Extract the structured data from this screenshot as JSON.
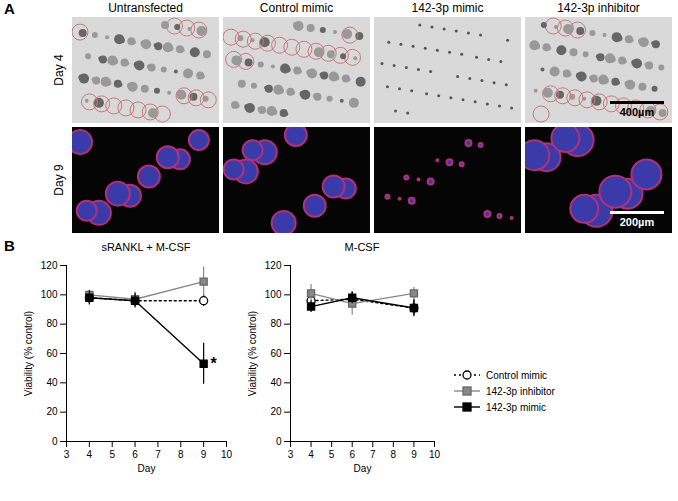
{
  "panel_labels": [
    "A",
    "B"
  ],
  "panel_a": {
    "columns": [
      "Untransfected",
      "Control mimic",
      "142-3p mimic",
      "142-3p inhibitor"
    ],
    "rows": [
      "Day 4",
      "Day 9"
    ],
    "scale_bars": [
      "400µm",
      "200µm"
    ]
  },
  "chart_data": [
    {
      "type": "line",
      "title": "sRANKL + M-CSF",
      "x_label": "Day",
      "y_label": "Viability (% control)",
      "x": [
        4,
        6,
        9
      ],
      "xlim": [
        3,
        10
      ],
      "xticks": [
        3,
        4,
        5,
        6,
        7,
        8,
        9,
        10
      ],
      "ylim": [
        0,
        120
      ],
      "yticks": [
        0,
        20,
        40,
        60,
        80,
        100,
        120
      ],
      "series": [
        {
          "name": "Control mimic",
          "color": "#000000",
          "marker": "open circle",
          "line_style": "dotted",
          "values": [
            98,
            96,
            96
          ],
          "errors": [
            4,
            4,
            4
          ]
        },
        {
          "name": "142-3p inhibitor",
          "color": "#888888",
          "marker": "square",
          "line_style": "solid",
          "values": [
            100,
            97,
            109
          ],
          "errors": [
            3,
            5,
            10
          ]
        },
        {
          "name": "142-3p mimic",
          "color": "#000000",
          "marker": "square",
          "line_style": "solid",
          "values": [
            98,
            96,
            53
          ],
          "errors": [
            5,
            5,
            14
          ]
        }
      ],
      "annotations": [
        {
          "x": 9,
          "y": 53,
          "text": "*"
        }
      ]
    },
    {
      "type": "line",
      "title": "M-CSF",
      "x_label": "Day",
      "y_label": "Viability (% control)",
      "x": [
        4,
        6,
        9
      ],
      "xlim": [
        3,
        10
      ],
      "xticks": [
        3,
        4,
        5,
        6,
        7,
        8,
        9,
        10
      ],
      "ylim": [
        0,
        120
      ],
      "yticks": [
        0,
        20,
        40,
        60,
        80,
        100,
        120
      ],
      "legend": "right",
      "series": [
        {
          "name": "Control mimic",
          "color": "#000000",
          "marker": "open circle",
          "line_style": "dotted",
          "values": [
            96,
            97,
            91
          ],
          "errors": [
            5,
            5,
            5
          ]
        },
        {
          "name": "142-3p inhibitor",
          "color": "#888888",
          "marker": "square",
          "line_style": "solid",
          "values": [
            101,
            94,
            101
          ],
          "errors": [
            6,
            8,
            4
          ]
        },
        {
          "name": "142-3p mimic",
          "color": "#000000",
          "marker": "square",
          "line_style": "solid",
          "values": [
            92,
            98,
            91
          ],
          "errors": [
            4,
            4,
            6
          ]
        }
      ]
    }
  ]
}
